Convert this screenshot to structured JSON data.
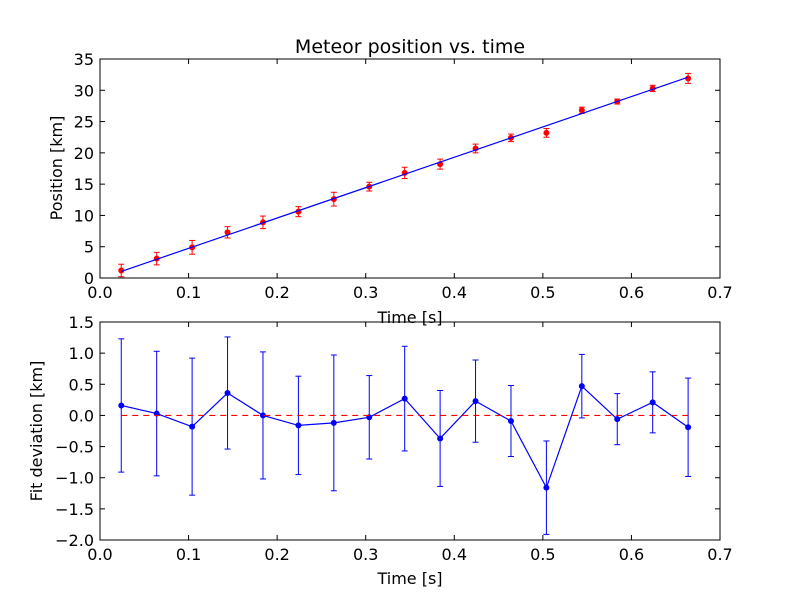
{
  "chart_data": [
    {
      "type": "scatter",
      "title": "Meteor position vs. time",
      "xlabel": "Time [s]",
      "ylabel": "Position [km]",
      "xlim": [
        0.0,
        0.7
      ],
      "ylim": [
        0,
        35
      ],
      "xticks": [
        "0.0",
        "0.1",
        "0.2",
        "0.3",
        "0.4",
        "0.5",
        "0.6",
        "0.7"
      ],
      "yticks": [
        "0",
        "5",
        "10",
        "15",
        "20",
        "25",
        "30",
        "35"
      ],
      "grid": false,
      "series": [
        {
          "kind": "errorbar-points",
          "color": "#ff0000",
          "x": [
            0.024,
            0.064,
            0.104,
            0.144,
            0.184,
            0.224,
            0.264,
            0.304,
            0.344,
            0.384,
            0.424,
            0.464,
            0.504,
            0.544,
            0.584,
            0.624,
            0.664
          ],
          "y": [
            1.2,
            3.1,
            4.9,
            7.3,
            8.9,
            10.6,
            12.6,
            14.6,
            16.8,
            18.2,
            20.7,
            22.4,
            23.2,
            26.8,
            28.2,
            30.3,
            31.9
          ],
          "yerr": [
            1.0,
            1.0,
            1.1,
            0.9,
            1.0,
            0.8,
            1.1,
            0.7,
            0.9,
            0.8,
            0.7,
            0.6,
            0.7,
            0.5,
            0.4,
            0.5,
            0.8
          ]
        },
        {
          "kind": "fit-line",
          "color": "#0000ff",
          "x": [
            0.024,
            0.664
          ],
          "y": [
            1.05,
            32.1
          ]
        }
      ]
    },
    {
      "type": "line",
      "title": "",
      "xlabel": "Time [s]",
      "ylabel": "Fit deviation [km]",
      "xlim": [
        0.0,
        0.7
      ],
      "ylim": [
        -2.0,
        1.5
      ],
      "xticks": [
        "0.0",
        "0.1",
        "0.2",
        "0.3",
        "0.4",
        "0.5",
        "0.6",
        "0.7"
      ],
      "yticks": [
        "1.5",
        "1.0",
        "0.5",
        "0.0",
        "−0.5",
        "−1.0",
        "−1.5",
        "−2.0"
      ],
      "grid": false,
      "series": [
        {
          "kind": "errorbar-line",
          "color": "#0000ff",
          "x": [
            0.024,
            0.064,
            0.104,
            0.144,
            0.184,
            0.224,
            0.264,
            0.304,
            0.344,
            0.384,
            0.424,
            0.464,
            0.504,
            0.544,
            0.584,
            0.624,
            0.664
          ],
          "y": [
            0.16,
            0.03,
            -0.18,
            0.36,
            0.0,
            -0.16,
            -0.12,
            -0.03,
            0.27,
            -0.37,
            0.23,
            -0.09,
            -1.16,
            0.47,
            -0.06,
            0.21,
            -0.19
          ],
          "yerr": [
            1.07,
            1.0,
            1.1,
            0.9,
            1.02,
            0.79,
            1.09,
            0.67,
            0.84,
            0.77,
            0.66,
            0.57,
            0.75,
            0.51,
            0.41,
            0.49,
            0.79
          ]
        },
        {
          "kind": "reference-line",
          "color": "#ff0000",
          "style": "dashed",
          "x": [
            0.024,
            0.664
          ],
          "y": [
            0.0,
            0.0
          ]
        }
      ]
    }
  ]
}
